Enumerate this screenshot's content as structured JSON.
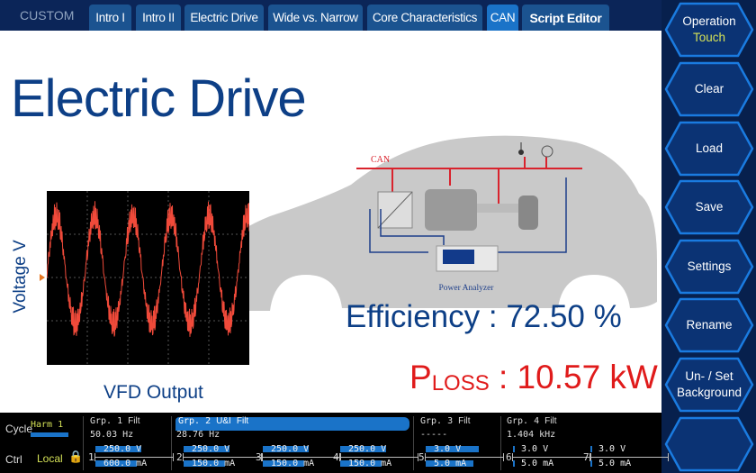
{
  "header": {
    "mode": "CUSTOM",
    "tabs": [
      {
        "label": "Intro I"
      },
      {
        "label": "Intro II"
      },
      {
        "label": "Electric Drive"
      },
      {
        "label": "Wide vs. Narrow"
      },
      {
        "label": "Core Characteristics"
      },
      {
        "label": "CAN",
        "active": true
      },
      {
        "label": "Script Editor"
      }
    ]
  },
  "slide": {
    "title": "Electric Drive",
    "scope_ylabel": "Voltage V",
    "scope_caption": "VFD Output",
    "diagram": {
      "bus_label": "CAN",
      "analyzer_label": "Power Analyzer"
    },
    "efficiency": "Efficiency : 72.50 %",
    "ploss_p": "P",
    "ploss_sub": "LOSS",
    "ploss_value": " : 10.57 kW"
  },
  "sidebar": {
    "buttons": [
      {
        "label": "Operation",
        "sub": "Touch"
      },
      {
        "label": "Clear"
      },
      {
        "label": "Load"
      },
      {
        "label": "Save"
      },
      {
        "label": "Settings"
      },
      {
        "label": "Rename"
      },
      {
        "label": "Un- / Set Background"
      },
      {
        "label": ""
      }
    ]
  },
  "status": {
    "cycle_label": "Cycle",
    "cycle_value": "Harm 1",
    "ctrl_label": "Ctrl",
    "ctrl_value": "Local",
    "groups": [
      {
        "name": "Grp. 1",
        "filt": "Filt",
        "freq": "50.03  Hz"
      },
      {
        "name": "Grp. 2",
        "mode": "U&I",
        "filt": "Filt",
        "freq": "28.76  Hz"
      },
      {
        "name": "Grp. 3",
        "filt": "Filt",
        "freq": "-----"
      },
      {
        "name": "Grp. 4",
        "filt": "Filt",
        "freq": "1.404 kHz"
      }
    ],
    "channels": [
      {
        "num": "1",
        "v": "250.0 V",
        "i": "600.0 mA"
      },
      {
        "num": "2",
        "v": "250.0 V",
        "i": "150.0 mA"
      },
      {
        "num": "3",
        "v": "250.0 V",
        "i": "150.0 mA"
      },
      {
        "num": "4",
        "v": "250.0 V",
        "i": "150.0 mA"
      },
      {
        "num": "5",
        "v": "3.0 V",
        "i": "5.0 mA"
      },
      {
        "num": "6",
        "v": "3.0 V",
        "i": "5.0 mA"
      },
      {
        "num": "7",
        "v": "3.0 V",
        "i": "5.0 mA"
      }
    ]
  },
  "colors": {
    "accent": "#1a73c8",
    "title": "#0d3f86",
    "loss": "#e01b1b",
    "touch": "#d4e157"
  }
}
